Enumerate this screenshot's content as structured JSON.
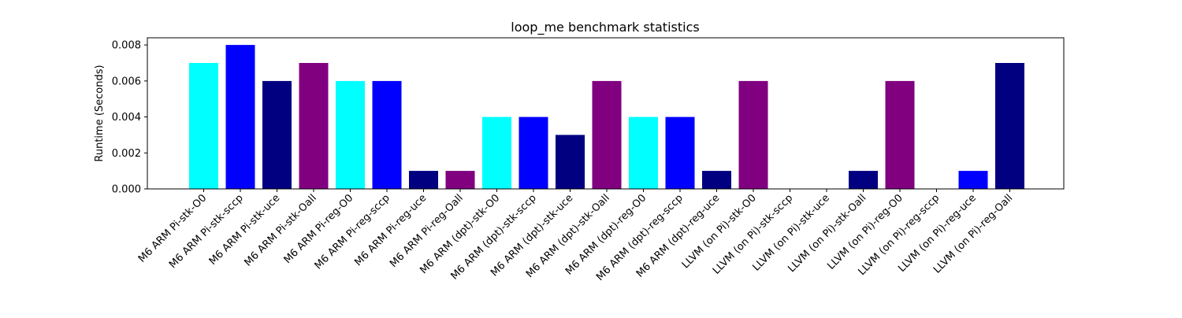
{
  "chart_data": {
    "type": "bar",
    "title": "loop_me benchmark statistics",
    "xlabel": "",
    "ylabel": "Runtime (Seconds)",
    "ylim": [
      0,
      0.0084
    ],
    "yticks": [
      "0.000",
      "0.002",
      "0.004",
      "0.006",
      "0.008"
    ],
    "ytick_values": [
      0,
      0.002,
      0.004,
      0.006,
      0.008
    ],
    "grid": false,
    "categories": [
      "M6 ARM Pi-stk-O0",
      "M6 ARM Pi-stk-sccp",
      "M6 ARM Pi-stk-uce",
      "M6 ARM Pi-stk-Oall",
      "M6 ARM Pi-reg-O0",
      "M6 ARM Pi-reg-sccp",
      "M6 ARM Pi-reg-uce",
      "M6 ARM Pi-reg-Oall",
      "M6 ARM (dpt)-stk-O0",
      "M6 ARM (dpt)-stk-sccp",
      "M6 ARM (dpt)-stk-uce",
      "M6 ARM (dpt)-stk-Oall",
      "M6 ARM (dpt)-reg-O0",
      "M6 ARM (dpt)-reg-sccp",
      "M6 ARM (dpt)-reg-uce",
      "LLVM (on Pi)-stk-O0",
      "LLVM (on Pi)-stk-sccp",
      "LLVM (on Pi)-stk-uce",
      "LLVM (on Pi)-stk-Oall",
      "LLVM (on Pi)-reg-O0",
      "LLVM (on Pi)-reg-sccp",
      "LLVM (on Pi)-reg-uce",
      "LLVM (on Pi)-reg-Oall"
    ],
    "values": [
      0.007,
      0.008,
      0.006,
      0.007,
      0.006,
      0.006,
      0.001,
      0.001,
      0.004,
      0.004,
      0.003,
      0.006,
      0.004,
      0.004,
      0.001,
      0.006,
      0,
      0,
      0.001,
      0.006,
      0,
      0.001,
      0.007
    ],
    "colors": [
      "#00ffff",
      "#0000ff",
      "#000080",
      "#800080",
      "#00ffff",
      "#0000ff",
      "#000080",
      "#800080",
      "#00ffff",
      "#0000ff",
      "#000080",
      "#800080",
      "#00ffff",
      "#0000ff",
      "#000080",
      "#800080",
      "#00ffff",
      "#0000ff",
      "#000080",
      "#800080",
      "#00ffff",
      "#0000ff",
      "#000080"
    ]
  }
}
